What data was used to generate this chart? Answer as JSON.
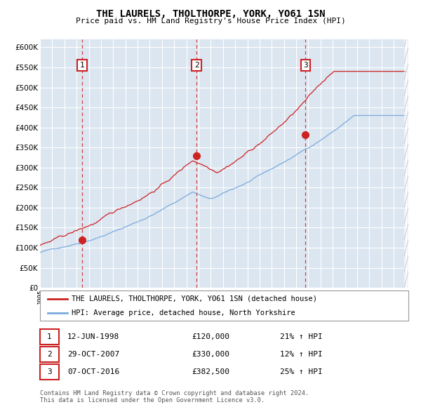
{
  "title": "THE LAURELS, THOLTHORPE, YORK, YO61 1SN",
  "subtitle": "Price paid vs. HM Land Registry's House Price Index (HPI)",
  "background_color": "#dce6f1",
  "fig_bg_color": "#ffffff",
  "ylim": [
    0,
    620000
  ],
  "year_start": 1995,
  "year_end": 2025,
  "purchase_dates": [
    1998.45,
    2007.83,
    2016.77
  ],
  "purchase_prices": [
    120000,
    330000,
    382500
  ],
  "purchase_labels": [
    "1",
    "2",
    "3"
  ],
  "red_color": "#cc2222",
  "blue_color": "#7aaadd",
  "dashed_color": "#cc2222",
  "grid_color": "#ffffff",
  "legend_entries": [
    {
      "color": "#cc2222",
      "label": "THE LAURELS, THOLTHORPE, YORK, YO61 1SN (detached house)"
    },
    {
      "color": "#7aaadd",
      "label": "HPI: Average price, detached house, North Yorkshire"
    }
  ],
  "table_rows": [
    {
      "num": "1",
      "date": "12-JUN-1998",
      "price": "£120,000",
      "change": "21% ↑ HPI"
    },
    {
      "num": "2",
      "date": "29-OCT-2007",
      "price": "£330,000",
      "change": "12% ↑ HPI"
    },
    {
      "num": "3",
      "date": "07-OCT-2016",
      "price": "£382,500",
      "change": "25% ↑ HPI"
    }
  ],
  "footnote": "Contains HM Land Registry data © Crown copyright and database right 2024.\nThis data is licensed under the Open Government Licence v3.0."
}
